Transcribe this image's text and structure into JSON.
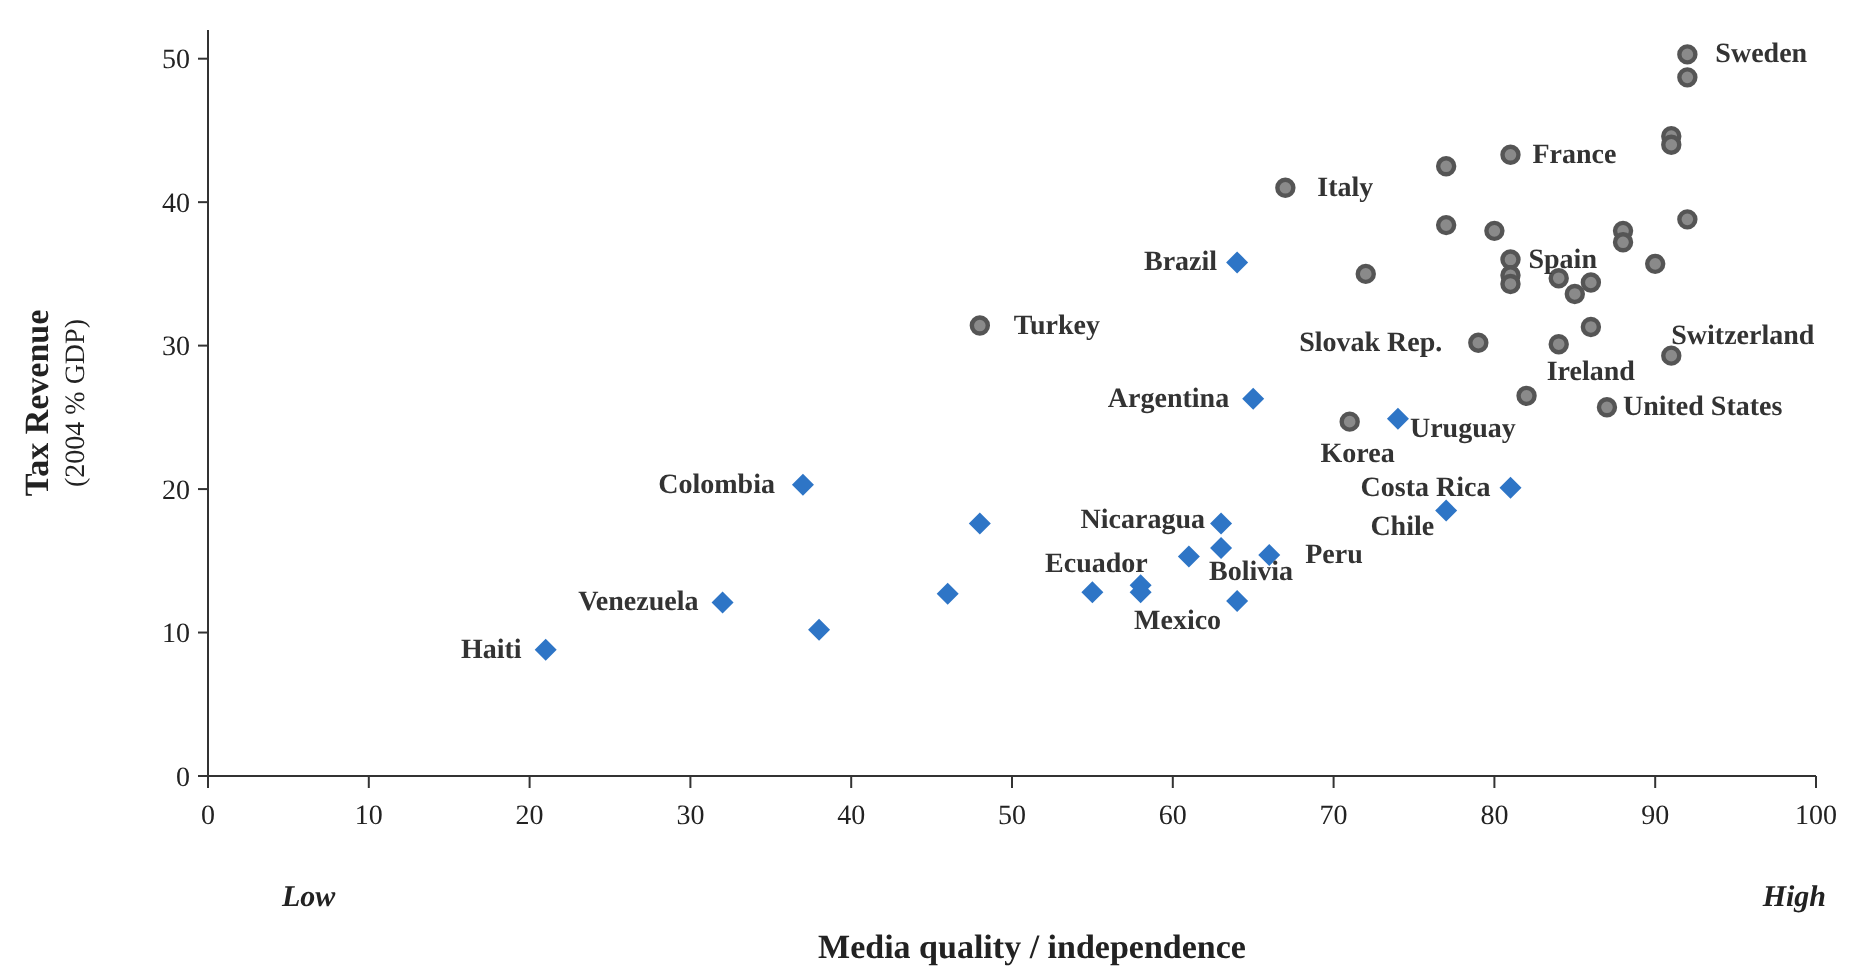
{
  "chart_data": {
    "type": "scatter",
    "xlabel": "Media quality / independence",
    "ylabel": "Tax Revenue\n(2004 % GDP)",
    "xlim": [
      0,
      100
    ],
    "xticks": [
      0,
      10,
      20,
      30,
      40,
      50,
      60,
      70,
      80,
      90,
      100
    ],
    "ylim": [
      0,
      52
    ],
    "yticks": [
      0,
      10,
      20,
      30,
      40,
      50
    ],
    "grid": false,
    "series": [
      {
        "color": "#555555",
        "marker": "circle",
        "x": [
          92,
          92,
          91,
          91,
          67,
          77,
          81,
          92,
          77,
          80,
          88,
          88,
          90,
          72,
          81,
          81,
          81,
          84,
          85,
          86,
          86,
          79,
          84,
          91,
          82,
          87,
          71,
          48
        ],
        "values": [
          50.3,
          48.7,
          44.6,
          44,
          41,
          42.5,
          43.3,
          38.8,
          38.4,
          38,
          38,
          37.2,
          35.7,
          35,
          36,
          34.9,
          34.3,
          34.7,
          33.6,
          34.4,
          31.3,
          30.2,
          30.1,
          29.3,
          26.5,
          25.7,
          24.7,
          31.4
        ]
      },
      {
        "color": "#2e75c6",
        "marker": "diamond",
        "x": [
          64,
          65,
          74,
          81,
          77,
          63,
          63,
          61,
          66,
          55,
          58,
          58,
          64,
          37,
          48,
          32,
          46,
          38,
          21
        ],
        "values": [
          35.8,
          26.3,
          24.9,
          20.1,
          18.5,
          17.6,
          15.9,
          15.3,
          15.4,
          12.8,
          13.3,
          12.8,
          12.2,
          20.3,
          17.6,
          12.1,
          12.7,
          10.2,
          8.8
        ]
      }
    ],
    "annotations": [
      "Low",
      "High",
      {
        "text": "Sweden",
        "x": 92,
        "y": 50.3
      },
      {
        "text": "Italy",
        "x": 67,
        "y": 41
      },
      {
        "text": "France",
        "x": 81,
        "y": 43.3
      },
      {
        "text": "Spain",
        "x": 81,
        "y": 36
      },
      {
        "text": "Turkey",
        "x": 48,
        "y": 31.4
      },
      {
        "text": "Slovak Rep.",
        "x": 79,
        "y": 30.2
      },
      {
        "text": "Switzerland",
        "x": 91,
        "y": 29.3
      },
      {
        "text": "Ireland",
        "x": 84,
        "y": 30.1
      },
      {
        "text": "United States",
        "x": 87,
        "y": 25.7
      },
      {
        "text": "Korea",
        "x": 71,
        "y": 24.7
      },
      {
        "text": "Brazil",
        "x": 64,
        "y": 35.8
      },
      {
        "text": "Argentina",
        "x": 65,
        "y": 26.3
      },
      {
        "text": "Uruguay",
        "x": 74,
        "y": 24.9
      },
      {
        "text": "Costa Rica",
        "x": 81,
        "y": 20.1
      },
      {
        "text": "Chile",
        "x": 77,
        "y": 18.5
      },
      {
        "text": "Nicaragua",
        "x": 63,
        "y": 17.6
      },
      {
        "text": "Peru",
        "x": 66,
        "y": 15.4
      },
      {
        "text": "Ecuador",
        "x": 55,
        "y": 12.8
      },
      {
        "text": "Bolivia",
        "x": 63,
        "y": 15.9
      },
      {
        "text": "Mexico",
        "x": 64,
        "y": 12.2
      },
      {
        "text": "Colombia",
        "x": 37,
        "y": 20.3
      },
      {
        "text": "Venezuela",
        "x": 32,
        "y": 12.1
      },
      {
        "text": "Haiti",
        "x": 21,
        "y": 8.8
      }
    ]
  }
}
